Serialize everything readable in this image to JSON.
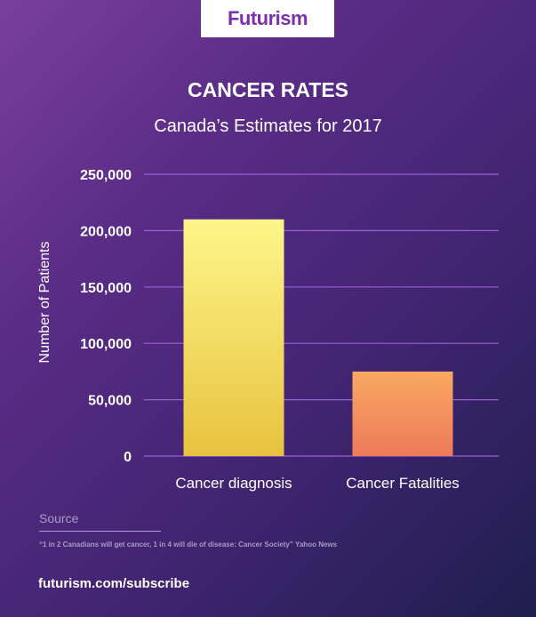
{
  "logo": "Futurism",
  "chart_data": {
    "type": "bar",
    "title": "CANCER RATES",
    "subtitle": "Canada’s Estimates for 2017",
    "categories": [
      "Cancer diagnosis",
      "Cancer Fatalities"
    ],
    "values": [
      210000,
      75000
    ],
    "ylabel": "Number of Patients",
    "xlabel": "",
    "ylim": [
      0,
      250000
    ],
    "yticks": [
      "0",
      "50,000",
      "100,000",
      "150,000",
      "200,000",
      "250,000"
    ],
    "grid": true,
    "colors": {
      "bars": [
        [
          "#fdf68a",
          "#e8c23e"
        ],
        [
          "#f9a862",
          "#ee7a5a"
        ]
      ],
      "grid": "#9b5fd6"
    }
  },
  "source": {
    "label": "Source",
    "text": "“1 in 2 Canadians will get cancer, 1 in 4 will die of disease: Cancer Society” Yahoo News"
  },
  "footer": "futurism.com/subscribe"
}
